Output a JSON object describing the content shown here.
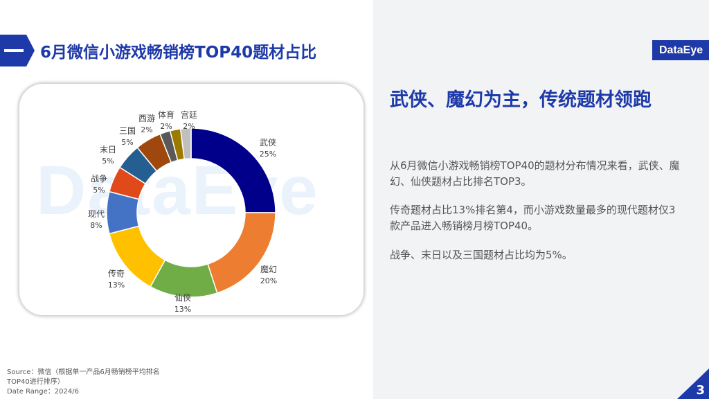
{
  "header": {
    "title": "6月微信小游戏畅销榜TOP40题材占比",
    "logo": "DataEye"
  },
  "watermark": "DataEye",
  "chart_data": {
    "type": "pie",
    "hole": "donut",
    "categories": [
      "武侠",
      "魔幻",
      "仙侠",
      "传奇",
      "现代",
      "战争",
      "末日",
      "三国",
      "西游",
      "体育",
      "宫廷"
    ],
    "values": [
      25,
      20,
      13,
      13,
      8,
      5,
      5,
      5,
      2,
      2,
      2
    ],
    "labels": [
      "25%",
      "20%",
      "13%",
      "13%",
      "8%",
      "5%",
      "5%",
      "5%",
      "2%",
      "2%",
      "2%"
    ],
    "colors": [
      "#00008b",
      "#ed7d31",
      "#70ad47",
      "#ffc000",
      "#4472c4",
      "#e04a1a",
      "#255e91",
      "#9e480e",
      "#595959",
      "#9c7a00",
      "#bfbfbf"
    ]
  },
  "summary": {
    "heading": "武侠、魔幻为主，传统题材领跑",
    "paragraphs": [
      "从6月微信小游戏畅销榜TOP40的题材分布情况来看，武侠、魔幻、仙侠题材占比排名TOP3。",
      "传奇题材占比13%排名第4，而小游戏数量最多的现代题材仅3款产品进入畅销榜月榜TOP40。",
      "战争、末日以及三国题材占比均为5%。"
    ]
  },
  "footer": {
    "source_line1": "Source：微信（根据单一产品6月畅销榜平均排名",
    "source_line2": "TOP40进行排序）",
    "date_range": "Date Range：2024/6",
    "page_number": "3"
  }
}
